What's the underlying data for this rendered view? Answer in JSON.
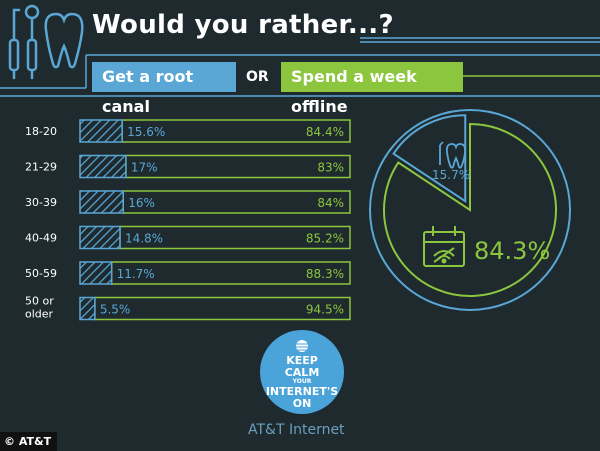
{
  "header": {
    "title": "Would you rather...?",
    "option_a": "Get a root canal",
    "or_label": "OR",
    "option_b": "Spend a week offline"
  },
  "colors": {
    "background": "#1e2a2e",
    "root_canal": "#5aa7d6",
    "offline": "#8cc63e"
  },
  "chart_data": [
    {
      "type": "bar",
      "orientation": "horizontal-stacked",
      "categories": [
        "18-20",
        "21-29",
        "30-39",
        "40-49",
        "50-59",
        "50 or older"
      ],
      "series": [
        {
          "name": "Get a root canal",
          "values": [
            15.6,
            17,
            16,
            14.8,
            11.7,
            5.5
          ],
          "labels": [
            "15.6%",
            "17%",
            "16%",
            "14.8%",
            "11.7%",
            "5.5%"
          ]
        },
        {
          "name": "Spend a week offline",
          "values": [
            84.4,
            83,
            84,
            85.2,
            88.3,
            94.5
          ],
          "labels": [
            "84.4%",
            "83%",
            "84%",
            "85.2%",
            "88.3%",
            "94.5%"
          ]
        }
      ],
      "xlim": [
        0,
        100
      ],
      "legend": "top"
    },
    {
      "type": "pie",
      "slices": [
        {
          "name": "Get a root canal",
          "value": 15.7,
          "label": "15.7%"
        },
        {
          "name": "Spend a week offline",
          "value": 84.3,
          "label": "84.3%"
        }
      ]
    }
  ],
  "logo": {
    "line1": "KEEP",
    "line2": "CALM",
    "line3": "YOUR",
    "line4": "INTERNET'S",
    "line5": "ON",
    "brand": "AT&T Internet"
  },
  "credit": "© AT&T"
}
